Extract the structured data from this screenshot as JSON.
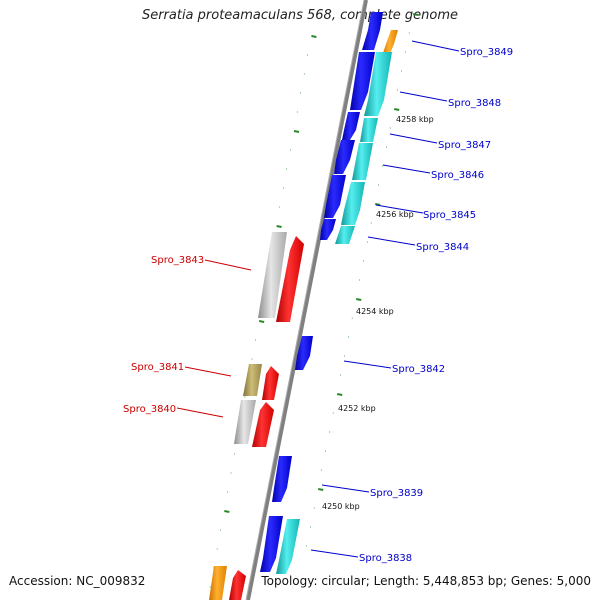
{
  "title": "Serratia proteamaculans 568, complete genome",
  "accession": "Accession: NC_009832",
  "topology": "Topology: circular; Length: 5,448,853 bp; Genes: 5,000",
  "colors": {
    "backbone": "#7f7f7f",
    "tick": "#2a8a2a",
    "label_forward": "#0000cc",
    "label_reverse": "#cc0000",
    "blue_gene": "#1010ee",
    "cyan_gene": "#22cccc",
    "red_gene": "#ee1111",
    "grey_gene": "#b8b8b8",
    "olive_gene": "#a89a55",
    "orange_gene": "#ff9900"
  },
  "scale_labels": [
    "4258 kbp",
    "4256 kbp",
    "4254 kbp",
    "4252 kbp",
    "4250 kbp"
  ],
  "forward_labels": [
    "Spro_3849",
    "Spro_3848",
    "Spro_3847",
    "Spro_3846",
    "Spro_3845",
    "Spro_3844",
    "Spro_3842",
    "Spro_3839",
    "Spro_3838"
  ],
  "reverse_labels": [
    "Spro_3843",
    "Spro_3841",
    "Spro_3840"
  ]
}
